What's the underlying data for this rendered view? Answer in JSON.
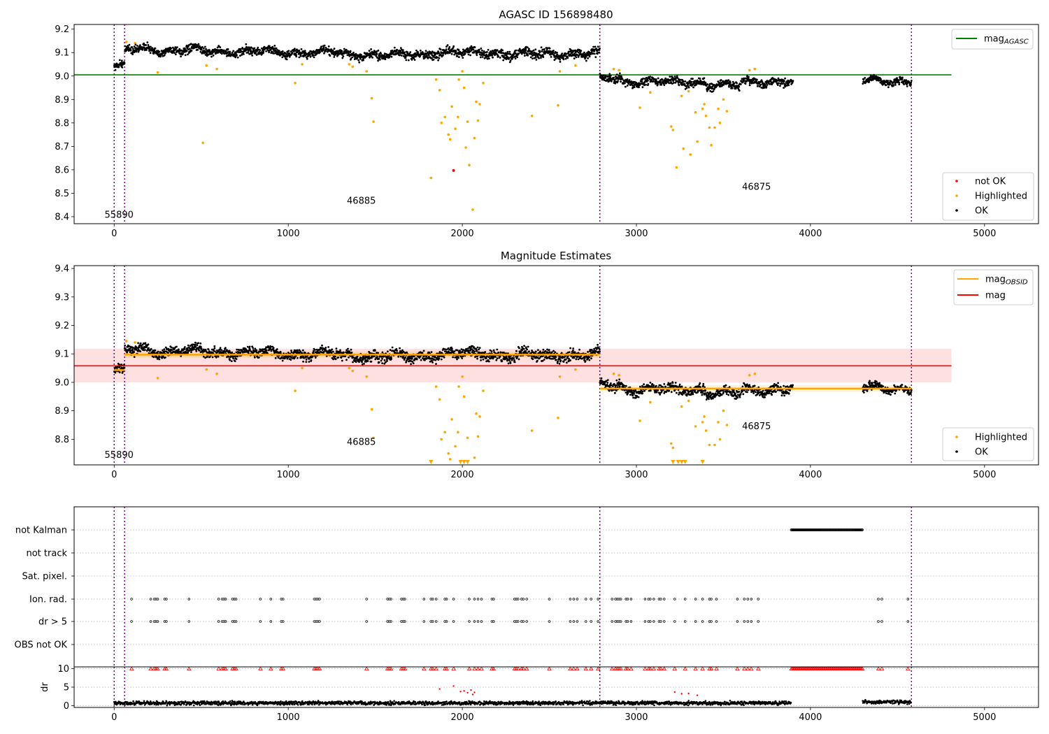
{
  "chart_data": [
    {
      "type": "scatter",
      "title": "AGASC ID 156898480",
      "xlabel": "",
      "ylabel": "",
      "xlim": [
        -230,
        5310
      ],
      "ylim": [
        8.37,
        9.22
      ],
      "xticks": [
        0,
        1000,
        2000,
        3000,
        4000,
        5000
      ],
      "yticks": [
        8.4,
        8.5,
        8.6,
        8.7,
        8.8,
        8.9,
        9.0,
        9.1,
        9.2
      ],
      "vlines": [
        0,
        60,
        2790,
        4580
      ],
      "reference_line": {
        "label": "mag",
        "sub": "AGASC",
        "y": 9.005,
        "x": [
          -230,
          4810
        ],
        "color": "#008000"
      },
      "annotations": [
        {
          "text": "55890",
          "x": 28,
          "y": 8.395
        },
        {
          "text": "46885",
          "x": 1420,
          "y": 8.455
        },
        {
          "text": "46875",
          "x": 3690,
          "y": 8.515
        }
      ],
      "legend_top": [
        {
          "label": "mag",
          "sub": "AGASC",
          "color": "#008000",
          "marker": "line"
        }
      ],
      "legend_bottom": [
        {
          "label": "not OK",
          "color": "#ff0000",
          "marker": "dot"
        },
        {
          "label": "Highlighted",
          "color": "#ffa500",
          "marker": "dot"
        },
        {
          "label": "OK",
          "color": "#000000",
          "marker": "dot"
        }
      ],
      "series": [
        {
          "name": "OK",
          "segments": [
            {
              "x": [
                0,
                60
              ],
              "y": 9.04,
              "spread": 0.012
            },
            {
              "x": [
                60,
                200
              ],
              "y": 9.115,
              "spread": 0.012
            },
            {
              "x": [
                200,
                500
              ],
              "y": 9.11,
              "spread": 0.012
            },
            {
              "x": [
                500,
                900
              ],
              "y": 9.105,
              "spread": 0.012
            },
            {
              "x": [
                900,
                1300
              ],
              "y": 9.1,
              "spread": 0.012
            },
            {
              "x": [
                1300,
                1800
              ],
              "y": 9.09,
              "spread": 0.013
            },
            {
              "x": [
                1800,
                2200
              ],
              "y": 9.1,
              "spread": 0.013
            },
            {
              "x": [
                2200,
                2790
              ],
              "y": 9.095,
              "spread": 0.014
            },
            {
              "x": [
                2790,
                2920
              ],
              "y": 8.99,
              "spread": 0.013
            },
            {
              "x": [
                2920,
                3400
              ],
              "y": 8.975,
              "spread": 0.012
            },
            {
              "x": [
                3400,
                3600
              ],
              "y": 8.96,
              "spread": 0.012
            },
            {
              "x": [
                3600,
                3900
              ],
              "y": 8.975,
              "spread": 0.012
            },
            {
              "x": [
                4300,
                4580
              ],
              "y": 8.98,
              "spread": 0.01
            }
          ]
        },
        {
          "name": "Highlighted",
          "points": [
            [
              70,
              9.145
            ],
            [
              120,
              9.14
            ],
            [
              250,
              9.015
            ],
            [
              510,
              8.715
            ],
            [
              530,
              9.045
            ],
            [
              590,
              9.03
            ],
            [
              1040,
              8.97
            ],
            [
              1080,
              9.05
            ],
            [
              1350,
              9.05
            ],
            [
              1370,
              9.04
            ],
            [
              1450,
              9.02
            ],
            [
              1480,
              8.905
            ],
            [
              1490,
              8.805
            ],
            [
              1820,
              8.565
            ],
            [
              1850,
              8.985
            ],
            [
              1870,
              8.94
            ],
            [
              1880,
              8.8
            ],
            [
              1900,
              8.825
            ],
            [
              1920,
              8.75
            ],
            [
              1930,
              8.73
            ],
            [
              1940,
              8.87
            ],
            [
              1960,
              8.775
            ],
            [
              1975,
              8.825
            ],
            [
              1980,
              8.985
            ],
            [
              2000,
              9.02
            ],
            [
              2010,
              8.95
            ],
            [
              2020,
              8.695
            ],
            [
              2030,
              8.805
            ],
            [
              2040,
              8.62
            ],
            [
              2060,
              8.43
            ],
            [
              2070,
              8.735
            ],
            [
              2080,
              8.89
            ],
            [
              2090,
              8.81
            ],
            [
              2100,
              8.88
            ],
            [
              2120,
              8.97
            ],
            [
              2400,
              8.83
            ],
            [
              2550,
              8.875
            ],
            [
              2560,
              9.02
            ],
            [
              2650,
              9.045
            ],
            [
              2870,
              9.03
            ],
            [
              2900,
              9.025
            ],
            [
              3020,
              8.865
            ],
            [
              3080,
              8.93
            ],
            [
              3200,
              8.785
            ],
            [
              3210,
              8.77
            ],
            [
              3230,
              8.61
            ],
            [
              3260,
              8.915
            ],
            [
              3270,
              8.69
            ],
            [
              3300,
              8.935
            ],
            [
              3310,
              8.665
            ],
            [
              3340,
              8.845
            ],
            [
              3350,
              8.72
            ],
            [
              3380,
              8.86
            ],
            [
              3390,
              8.88
            ],
            [
              3400,
              8.83
            ],
            [
              3420,
              8.78
            ],
            [
              3430,
              8.705
            ],
            [
              3450,
              8.78
            ],
            [
              3470,
              8.86
            ],
            [
              3480,
              8.8
            ],
            [
              3500,
              8.9
            ],
            [
              3520,
              8.85
            ],
            [
              3650,
              9.025
            ],
            [
              3680,
              9.03
            ]
          ]
        },
        {
          "name": "not OK",
          "points": [
            [
              1950,
              8.597
            ]
          ]
        }
      ]
    },
    {
      "type": "scatter",
      "title": "Magnitude Estimates",
      "xlabel": "",
      "ylabel": "",
      "xlim": [
        -230,
        5310
      ],
      "ylim": [
        8.71,
        9.41
      ],
      "xticks": [
        0,
        1000,
        2000,
        3000,
        4000,
        5000
      ],
      "yticks": [
        8.8,
        8.9,
        9.0,
        9.1,
        9.2,
        9.3,
        9.4
      ],
      "vlines": [
        0,
        60,
        2790,
        4580
      ],
      "mag_line": {
        "label": "mag",
        "y": 9.058,
        "band": [
          9.0,
          9.118
        ],
        "x": [
          -230,
          4810
        ],
        "color": "#ff0000",
        "band_color": "#ffcccc"
      },
      "obsid_segments": [
        {
          "x": [
            0,
            60
          ],
          "y": 9.043
        },
        {
          "x": [
            60,
            2790
          ],
          "y": 9.097
        },
        {
          "x": [
            2790,
            4580
          ],
          "y": 8.978
        }
      ],
      "annotations": [
        {
          "text": "55890",
          "x": 28,
          "y": 8.735
        },
        {
          "text": "46885",
          "x": 1420,
          "y": 8.78
        },
        {
          "text": "46875",
          "x": 3690,
          "y": 8.835
        }
      ],
      "legend_top": [
        {
          "label": "mag",
          "sub": "OBSID",
          "color": "#ffa500",
          "marker": "line"
        },
        {
          "label": "mag",
          "color": "#ff0000",
          "marker": "line"
        }
      ],
      "legend_bottom": [
        {
          "label": "Highlighted",
          "color": "#ffa500",
          "marker": "dot"
        },
        {
          "label": "OK",
          "color": "#000000",
          "marker": "dot"
        }
      ],
      "lower_limit_markers": [
        1820,
        1990,
        2010,
        2030,
        3210,
        3240,
        3260,
        3280,
        3380
      ]
    },
    {
      "type": "scatter",
      "title": "",
      "xlim": [
        -230,
        5310
      ],
      "xticks": [
        0,
        1000,
        2000,
        3000,
        4000,
        5000
      ],
      "vlines": [
        0,
        60,
        2790,
        4580
      ],
      "flag_rows": [
        "not Kalman",
        "not track",
        "Sat. pixel.",
        "Ion. rad.",
        "dr > 5",
        "OBS not OK"
      ],
      "flags": {
        "not Kalman": [
          [
            3890,
            4300
          ]
        ],
        "Ion. rad.": [
          100,
          210,
          230,
          240,
          250,
          290,
          300,
          430,
          600,
          620,
          630,
          640,
          680,
          690,
          700,
          840,
          900,
          960,
          970,
          1150,
          1160,
          1170,
          1180,
          1450,
          1570,
          1580,
          1590,
          1650,
          1660,
          1670,
          1780,
          1820,
          1830,
          1850,
          1900,
          1910,
          1950,
          2040,
          2070,
          2090,
          2110,
          2170,
          2180,
          2300,
          2310,
          2320,
          2340,
          2350,
          2370,
          2500,
          2620,
          2640,
          2660,
          2710,
          2740,
          2780,
          2860,
          2880,
          2890,
          2900,
          2910,
          2940,
          2950,
          2970,
          3050,
          3070,
          3080,
          3100,
          3130,
          3140,
          3160,
          3220,
          3280,
          3340,
          3380,
          3420,
          3430,
          3460,
          3580,
          3620,
          3640,
          3660,
          3700,
          4390,
          4410,
          4560
        ],
        "dr > 5": [
          100,
          210,
          230,
          240,
          250,
          290,
          300,
          430,
          600,
          620,
          630,
          640,
          680,
          690,
          700,
          840,
          900,
          960,
          970,
          1150,
          1160,
          1170,
          1180,
          1450,
          1570,
          1580,
          1590,
          1650,
          1660,
          1670,
          1780,
          1820,
          1830,
          1850,
          1900,
          1910,
          1950,
          2040,
          2070,
          2090,
          2110,
          2170,
          2180,
          2300,
          2310,
          2320,
          2340,
          2350,
          2370,
          2500,
          2620,
          2640,
          2660,
          2710,
          2740,
          2780,
          2860,
          2880,
          2890,
          2900,
          2910,
          2940,
          2950,
          2970,
          3050,
          3070,
          3080,
          3100,
          3130,
          3140,
          3160,
          3220,
          3280,
          3340,
          3380,
          3420,
          3430,
          3460,
          3580,
          3620,
          3640,
          3660,
          3700,
          4390,
          4410,
          4560
        ]
      }
    },
    {
      "type": "scatter",
      "title": "",
      "xlabel": "",
      "ylabel": "dr",
      "xlim": [
        -230,
        5310
      ],
      "ylim": [
        -0.5,
        10.5
      ],
      "xticks": [
        0,
        1000,
        2000,
        3000,
        4000,
        5000
      ],
      "yticks": [
        0,
        5,
        10
      ],
      "vlines": [
        0,
        60,
        2790,
        4580
      ],
      "segments": [
        [
          0,
          3890,
          0.7
        ],
        [
          4300,
          4580,
          1.0
        ]
      ],
      "red_points": [
        [
          1870,
          4.5
        ],
        [
          1950,
          5.3
        ],
        [
          1990,
          3.8
        ],
        [
          2010,
          4.0
        ],
        [
          2030,
          3.5
        ],
        [
          2050,
          4.2
        ],
        [
          2060,
          3.0
        ],
        [
          2070,
          3.6
        ],
        [
          3220,
          3.7
        ],
        [
          3260,
          3.2
        ],
        [
          3300,
          3.3
        ],
        [
          3350,
          2.8
        ]
      ],
      "red_at_limit": [
        100,
        210,
        230,
        240,
        250,
        290,
        300,
        430,
        600,
        620,
        630,
        640,
        680,
        690,
        700,
        840,
        900,
        960,
        970,
        1150,
        1160,
        1170,
        1180,
        1450,
        1570,
        1580,
        1590,
        1650,
        1660,
        1670,
        1780,
        1820,
        1830,
        1850,
        1900,
        1910,
        1950,
        2040,
        2070,
        2090,
        2110,
        2170,
        2180,
        2300,
        2310,
        2320,
        2340,
        2350,
        2370,
        2500,
        2620,
        2640,
        2660,
        2710,
        2740,
        2780,
        2860,
        2880,
        2890,
        2900,
        2910,
        2940,
        2950,
        2970,
        3050,
        3070,
        3080,
        3100,
        3130,
        3140,
        3160,
        3220,
        3280,
        3340,
        3380,
        3420,
        3430,
        3460,
        3580,
        3620,
        3640,
        3660,
        3700,
        4390,
        4410,
        4560
      ],
      "red_limit_range": [
        3890,
        4300
      ]
    }
  ]
}
